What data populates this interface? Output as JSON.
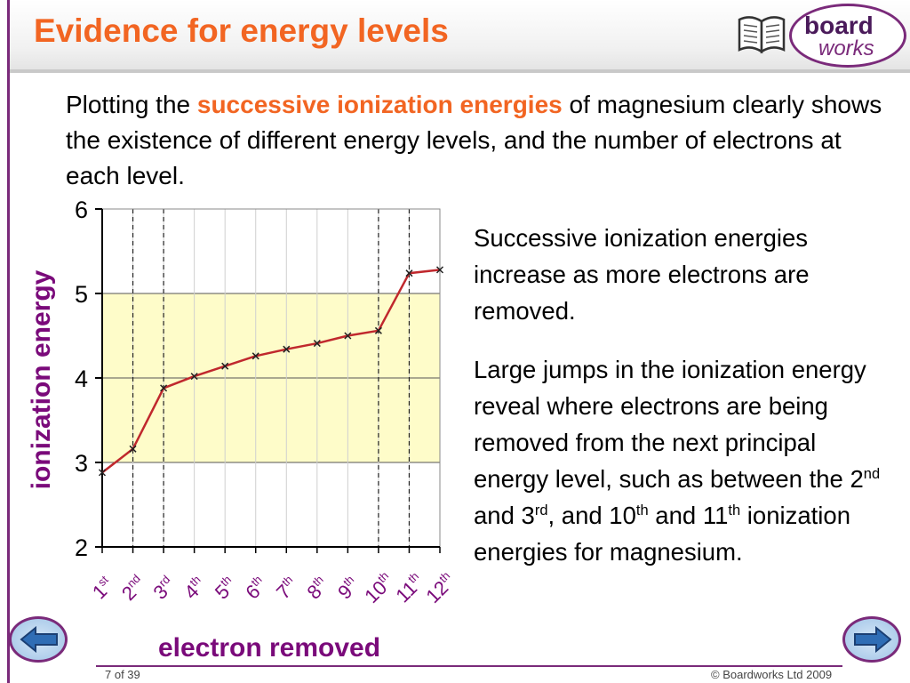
{
  "slide": {
    "title": "Evidence for energy levels",
    "logo": {
      "word1": "board",
      "word2": "works",
      "icon": "book-icon"
    },
    "intro": {
      "before": "Plotting the ",
      "highlight": "successive ionization energies",
      "after": " of magnesium clearly shows the existence of different energy levels, and the number of electrons at each level."
    },
    "side_text_1": "Successive ionization energies increase as more electrons are removed.",
    "side_text_2": {
      "a": "Large jumps in the ionization energy reveal where electrons are being removed from the next principal energy level, such as between the 2",
      "sup1": "nd",
      "b": " and 3",
      "sup2": "rd",
      "c": ", and 10",
      "sup3": "th",
      "d": " and 11",
      "sup4": "th",
      "e": " ionization energies for magnesium."
    },
    "footer": {
      "page": "7 of 39",
      "copyright": "© Boardworks Ltd 2009"
    },
    "nav": {
      "prev_icon": "arrow-left-icon",
      "next_icon": "arrow-right-icon"
    }
  },
  "colors": {
    "title": "#f26522",
    "highlight": "#f26522",
    "axis_title": "#7a0a7a",
    "line": "#c0282d",
    "band": "#fefcc9",
    "frame": "#7a2a7a"
  },
  "chart_data": {
    "type": "line",
    "title": "",
    "xlabel": "electron removed",
    "ylabel": "ionization energy",
    "ylim": [
      2,
      6
    ],
    "yticks": [
      "2",
      "3",
      "4",
      "5",
      "6"
    ],
    "categories": [
      {
        "num": "1",
        "suffix": "st"
      },
      {
        "num": "2",
        "suffix": "nd"
      },
      {
        "num": "3",
        "suffix": "rd"
      },
      {
        "num": "4",
        "suffix": "th"
      },
      {
        "num": "5",
        "suffix": "th"
      },
      {
        "num": "6",
        "suffix": "th"
      },
      {
        "num": "7",
        "suffix": "th"
      },
      {
        "num": "8",
        "suffix": "th"
      },
      {
        "num": "9",
        "suffix": "th"
      },
      {
        "num": "10",
        "suffix": "th"
      },
      {
        "num": "11",
        "suffix": "th"
      },
      {
        "num": "12",
        "suffix": "th"
      }
    ],
    "values": [
      2.88,
      3.16,
      3.88,
      4.02,
      4.14,
      4.26,
      4.34,
      4.41,
      4.5,
      4.56,
      5.24,
      5.28
    ],
    "shaded_band": [
      3,
      5
    ],
    "dashed_after_category": [
      2,
      3,
      10,
      11
    ],
    "grid": true
  }
}
